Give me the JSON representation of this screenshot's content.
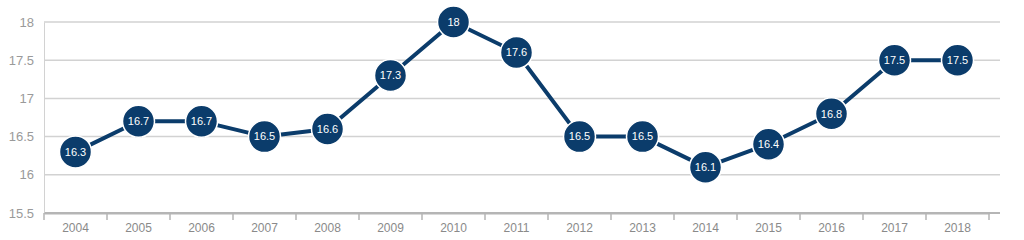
{
  "chart_data": {
    "type": "line",
    "categories": [
      "2004",
      "2005",
      "2006",
      "2007",
      "2008",
      "2009",
      "2010",
      "2011",
      "2012",
      "2013",
      "2014",
      "2015",
      "2016",
      "2017",
      "2018"
    ],
    "values": [
      16.3,
      16.7,
      16.7,
      16.5,
      16.6,
      17.3,
      18,
      17.6,
      16.5,
      16.5,
      16.1,
      16.4,
      16.8,
      17.5,
      17.5
    ],
    "color": "#0b3c6b",
    "ylim": [
      15.5,
      18
    ],
    "yticks": [
      15.5,
      16,
      16.5,
      17,
      17.5,
      18
    ],
    "grid": true,
    "data_labels": true,
    "marker": "circle"
  }
}
